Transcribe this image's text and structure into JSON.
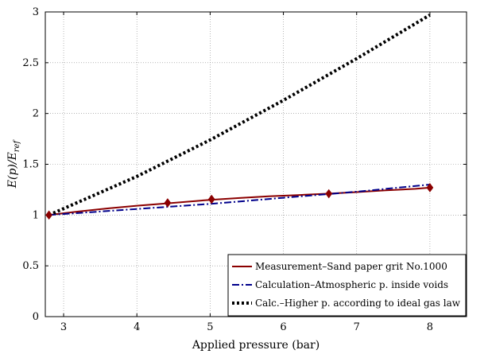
{
  "chart_data": {
    "type": "line",
    "xlabel": "Applied pressure (bar)",
    "ylabel_main": "E(p)/E",
    "ylabel_sub": "ref",
    "xlim": [
      2.75,
      8.5
    ],
    "ylim": [
      0,
      3
    ],
    "xticks": [
      3,
      4,
      5,
      6,
      7,
      8
    ],
    "yticks": [
      0,
      0.5,
      1,
      1.5,
      2,
      2.5,
      3
    ],
    "xtick_labels": [
      "3",
      "4",
      "5",
      "6",
      "7",
      "8"
    ],
    "ytick_labels": [
      "0",
      "0.5",
      "1",
      "1.5",
      "2",
      "2.5",
      "3"
    ],
    "grid": true,
    "legend_position": "bottom-right",
    "series": [
      {
        "name": "Measurement–Sand paper grit No.1000",
        "color": "#8b0000",
        "style": "solid",
        "marker": "diamond",
        "x": [
          2.8,
          3.2,
          3.6,
          4.0,
          4.4,
          4.8,
          5.0,
          5.4,
          5.8,
          6.2,
          6.6,
          7.0,
          7.4,
          7.8,
          8.0
        ],
        "y": [
          1.0,
          1.035,
          1.065,
          1.092,
          1.115,
          1.138,
          1.15,
          1.168,
          1.184,
          1.197,
          1.21,
          1.226,
          1.243,
          1.258,
          1.27
        ],
        "marker_x": [
          2.8,
          4.42,
          5.02,
          6.62,
          8.0
        ],
        "marker_y": [
          1.0,
          1.12,
          1.155,
          1.21,
          1.27
        ]
      },
      {
        "name": "Calculation–Atmospheric p. inside voids",
        "color": "#00008b",
        "style": "dashdot",
        "x": [
          2.8,
          3.5,
          4.0,
          4.5,
          5.0,
          5.5,
          6.0,
          6.5,
          7.0,
          7.5,
          8.0
        ],
        "y": [
          1.0,
          1.035,
          1.06,
          1.085,
          1.11,
          1.14,
          1.17,
          1.2,
          1.23,
          1.265,
          1.3
        ]
      },
      {
        "name": "Calc.–Higher p. according to ideal gas law",
        "color": "#000000",
        "style": "dotted",
        "x": [
          2.8,
          4.0,
          5.0,
          6.0,
          7.0,
          8.0
        ],
        "y": [
          1.0,
          1.38,
          1.74,
          2.13,
          2.54,
          2.97
        ]
      }
    ]
  }
}
